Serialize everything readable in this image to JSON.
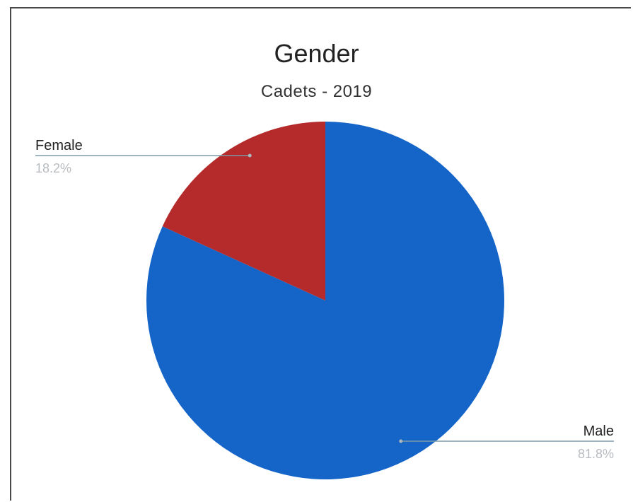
{
  "chart_data": {
    "type": "pie",
    "title": "Gender",
    "subtitle": "Cadets - 2019",
    "slices": [
      {
        "label": "Male",
        "value": 81.8,
        "display": "81.8%",
        "color": "#1565c9"
      },
      {
        "label": "Female",
        "value": 18.2,
        "display": "18.2%",
        "color": "#b52a2a"
      }
    ],
    "legend": "none",
    "label_style": "leader-lines"
  }
}
